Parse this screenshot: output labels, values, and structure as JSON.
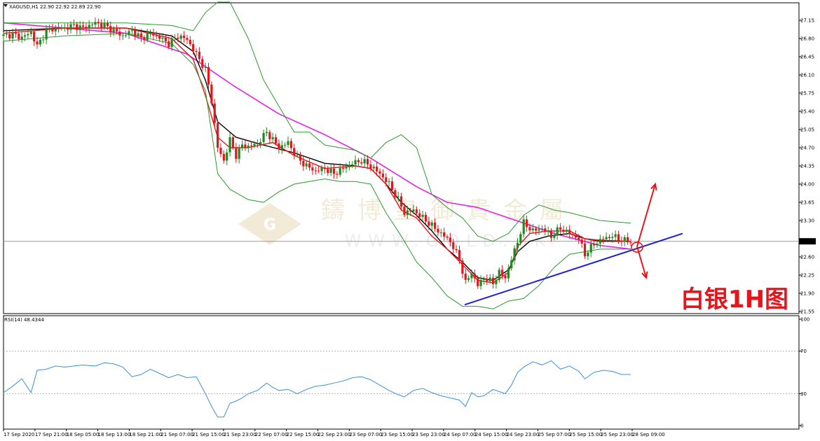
{
  "chart_data": [
    {
      "type": "candlestick",
      "symbol_header": "XAGUSD,H1",
      "ohlc_header": "22.90 22.92 22.89 22.90",
      "ylim": [
        21.55,
        27.35
      ],
      "y_ticks": [
        "27.15",
        "26.80",
        "26.45",
        "26.10",
        "25.75",
        "25.40",
        "25.05",
        "24.70",
        "24.35",
        "24.00",
        "23.65",
        "23.30",
        "22.60",
        "22.25",
        "21.90",
        "21.55"
      ],
      "current_price_label": "22.90",
      "current_price": 22.9,
      "x_labels": [
        "17 Sep 2020",
        "17 Sep 21:00",
        "18 Sep 05:00",
        "18 Sep 13:00",
        "18 Sep 21:00",
        "21 Sep 07:00",
        "21 Sep 15:00",
        "21 Sep 23:00",
        "22 Sep 07:00",
        "22 Sep 15:00",
        "22 Sep 23:00",
        "23 Sep 07:00",
        "23 Sep 15:00",
        "23 Sep 23:00",
        "24 Sep 07:00",
        "24 Sep 15:00",
        "24 Sep 23:00",
        "25 Sep 07:00",
        "25 Sep 15:00",
        "25 Sep 23:00",
        "28 Sep 09:00"
      ],
      "close_path": [
        [
          0,
          26.85
        ],
        [
          3,
          26.88
        ],
        [
          6,
          26.82
        ],
        [
          9,
          26.92
        ],
        [
          11,
          26.65
        ],
        [
          14,
          26.95
        ],
        [
          17,
          27.0
        ],
        [
          20,
          27.0
        ],
        [
          23,
          27.05
        ],
        [
          26,
          27.0
        ],
        [
          30,
          27.1
        ],
        [
          33,
          27.05
        ],
        [
          36,
          26.95
        ],
        [
          39,
          26.85
        ],
        [
          42,
          26.95
        ],
        [
          45,
          26.8
        ],
        [
          48,
          26.9
        ],
        [
          51,
          26.82
        ],
        [
          54,
          26.7
        ],
        [
          57,
          26.85
        ],
        [
          60,
          26.78
        ],
        [
          63,
          26.5
        ],
        [
          66,
          26.2
        ],
        [
          68,
          25.6
        ],
        [
          70,
          24.7
        ],
        [
          72,
          24.45
        ],
        [
          74,
          24.85
        ],
        [
          76,
          24.55
        ],
        [
          78,
          24.75
        ],
        [
          80,
          24.72
        ],
        [
          83,
          24.78
        ],
        [
          86,
          25.0
        ],
        [
          88,
          24.85
        ],
        [
          90,
          24.7
        ],
        [
          93,
          24.8
        ],
        [
          96,
          24.5
        ],
        [
          99,
          24.35
        ],
        [
          102,
          24.25
        ],
        [
          105,
          24.3
        ],
        [
          108,
          24.2
        ],
        [
          111,
          24.3
        ],
        [
          114,
          24.4
        ],
        [
          117,
          24.45
        ],
        [
          120,
          24.35
        ],
        [
          123,
          24.2
        ],
        [
          126,
          24.0
        ],
        [
          129,
          23.7
        ],
        [
          131,
          23.45
        ],
        [
          134,
          23.5
        ],
        [
          137,
          23.35
        ],
        [
          140,
          23.2
        ],
        [
          143,
          23.05
        ],
        [
          146,
          22.9
        ],
        [
          149,
          22.55
        ],
        [
          151,
          22.1
        ],
        [
          153,
          22.3
        ],
        [
          155,
          22.05
        ],
        [
          157,
          22.2
        ],
        [
          160,
          22.1
        ],
        [
          162,
          22.3
        ],
        [
          164,
          22.2
        ],
        [
          166,
          22.55
        ],
        [
          168,
          22.9
        ],
        [
          170,
          23.25
        ],
        [
          173,
          23.1
        ],
        [
          176,
          23.15
        ],
        [
          179,
          23.0
        ],
        [
          182,
          23.15
        ],
        [
          185,
          23.05
        ],
        [
          188,
          22.95
        ],
        [
          190,
          22.65
        ],
        [
          193,
          22.85
        ],
        [
          196,
          22.95
        ],
        [
          199,
          23.0
        ],
        [
          202,
          22.92
        ],
        [
          205,
          22.9
        ]
      ],
      "series": [
        {
          "name": "",
          "values": [
            [
              0,
              27.1
            ],
            [
              20,
              27.0
            ],
            [
              40,
              26.9
            ],
            [
              60,
              26.5
            ],
            [
              75,
              25.9
            ],
            [
              90,
              25.35
            ],
            [
              105,
              24.95
            ],
            [
              120,
              24.5
            ],
            [
              135,
              23.95
            ],
            [
              145,
              23.65
            ],
            [
              155,
              23.55
            ],
            [
              165,
              23.35
            ],
            [
              180,
              23.05
            ],
            [
              195,
              22.82
            ],
            [
              205,
              22.75
            ]
          ]
        },
        {
          "name": "",
          "values": [
            [
              0,
              26.95
            ],
            [
              20,
              27.0
            ],
            [
              40,
              27.0
            ],
            [
              55,
              26.85
            ],
            [
              62,
              26.55
            ],
            [
              66,
              26.0
            ],
            [
              70,
              25.2
            ],
            [
              76,
              24.9
            ],
            [
              85,
              24.75
            ],
            [
              95,
              24.6
            ],
            [
              105,
              24.4
            ],
            [
              115,
              24.35
            ],
            [
              120,
              24.3
            ],
            [
              125,
              24.0
            ],
            [
              130,
              23.65
            ],
            [
              135,
              23.4
            ],
            [
              140,
              23.1
            ],
            [
              145,
              22.75
            ],
            [
              150,
              22.5
            ],
            [
              155,
              22.2
            ],
            [
              160,
              22.15
            ],
            [
              165,
              22.35
            ],
            [
              168,
              22.7
            ],
            [
              172,
              22.9
            ],
            [
              178,
              23.0
            ],
            [
              185,
              23.05
            ],
            [
              190,
              22.95
            ],
            [
              195,
              22.9
            ],
            [
              205,
              22.9
            ]
          ]
        },
        {
          "name": "",
          "values": [
            [
              0,
              26.9
            ],
            [
              20,
              27.0
            ],
            [
              40,
              27.0
            ],
            [
              55,
              26.8
            ],
            [
              62,
              26.4
            ],
            [
              66,
              25.7
            ],
            [
              70,
              24.9
            ],
            [
              74,
              24.7
            ],
            [
              80,
              24.7
            ],
            [
              88,
              24.8
            ],
            [
              95,
              24.55
            ],
            [
              105,
              24.3
            ],
            [
              115,
              24.35
            ],
            [
              120,
              24.3
            ],
            [
              125,
              24.0
            ],
            [
              130,
              23.5
            ],
            [
              135,
              23.35
            ],
            [
              140,
              23.0
            ],
            [
              145,
              22.75
            ],
            [
              150,
              22.45
            ],
            [
              155,
              22.15
            ],
            [
              160,
              22.1
            ],
            [
              165,
              22.3
            ],
            [
              168,
              22.8
            ],
            [
              172,
              23.05
            ],
            [
              178,
              23.1
            ],
            [
              185,
              23.1
            ],
            [
              190,
              22.95
            ],
            [
              195,
              22.92
            ],
            [
              205,
              22.9
            ]
          ]
        },
        {
          "name": "",
          "values": [
            [
              0,
              27.1
            ],
            [
              20,
              27.1
            ],
            [
              40,
              27.1
            ],
            [
              55,
              27.05
            ],
            [
              62,
              26.95
            ],
            [
              66,
              27.3
            ],
            [
              70,
              27.5
            ],
            [
              74,
              27.5
            ],
            [
              80,
              26.8
            ],
            [
              85,
              26.0
            ],
            [
              90,
              25.5
            ],
            [
              95,
              25.0
            ],
            [
              100,
              25.0
            ],
            [
              105,
              24.75
            ],
            [
              115,
              24.65
            ],
            [
              120,
              24.5
            ],
            [
              125,
              24.8
            ],
            [
              130,
              24.95
            ],
            [
              135,
              24.7
            ],
            [
              140,
              23.8
            ],
            [
              145,
              23.55
            ],
            [
              150,
              23.35
            ],
            [
              155,
              23.0
            ],
            [
              160,
              22.9
            ],
            [
              165,
              23.05
            ],
            [
              170,
              23.4
            ],
            [
              175,
              23.6
            ],
            [
              180,
              23.5
            ],
            [
              185,
              23.45
            ],
            [
              195,
              23.3
            ],
            [
              205,
              23.25
            ]
          ]
        },
        {
          "name": "",
          "values": [
            [
              0,
              26.75
            ],
            [
              20,
              26.85
            ],
            [
              40,
              26.9
            ],
            [
              55,
              26.7
            ],
            [
              62,
              26.3
            ],
            [
              66,
              25.8
            ],
            [
              70,
              24.2
            ],
            [
              74,
              23.9
            ],
            [
              80,
              23.7
            ],
            [
              85,
              23.65
            ],
            [
              90,
              23.85
            ],
            [
              95,
              24.0
            ],
            [
              100,
              24.05
            ],
            [
              105,
              24.1
            ],
            [
              110,
              24.05
            ],
            [
              115,
              24.05
            ],
            [
              120,
              24.0
            ],
            [
              125,
              23.45
            ],
            [
              130,
              23.0
            ],
            [
              135,
              22.5
            ],
            [
              140,
              22.2
            ],
            [
              145,
              21.85
            ],
            [
              150,
              21.65
            ],
            [
              155,
              21.65
            ],
            [
              160,
              21.6
            ],
            [
              165,
              21.75
            ],
            [
              170,
              21.8
            ],
            [
              175,
              22.05
            ],
            [
              180,
              22.4
            ],
            [
              185,
              22.65
            ],
            [
              195,
              22.75
            ],
            [
              205,
              22.75
            ]
          ]
        }
      ],
      "trendline": [
        [
          0,
          21.68
        ],
        [
          230,
          23.05
        ]
      ],
      "arrows": [
        [
          0,
          22.8,
          22.25,
          24.0
        ],
        [
          0,
          22.8,
          8,
          22.2
        ]
      ],
      "annotation": "白银1H图",
      "watermark": {
        "cn": "鑄博皇御貴金屬",
        "en": "WWW.GOLD.HK",
        "logo": "G"
      }
    },
    {
      "type": "line",
      "header": "RSI(14) 48.4344",
      "ylim": [
        0,
        100
      ],
      "y_ticks": [
        "100",
        "70",
        "30",
        "0"
      ],
      "values": [
        [
          0,
          31
        ],
        [
          3,
          37
        ],
        [
          6,
          44
        ],
        [
          9,
          31
        ],
        [
          11,
          52
        ],
        [
          14,
          53
        ],
        [
          17,
          56
        ],
        [
          20,
          55
        ],
        [
          23,
          56
        ],
        [
          26,
          57
        ],
        [
          30,
          56
        ],
        [
          33,
          59
        ],
        [
          36,
          58
        ],
        [
          39,
          55
        ],
        [
          42,
          46
        ],
        [
          45,
          48
        ],
        [
          48,
          53
        ],
        [
          51,
          49
        ],
        [
          54,
          45
        ],
        [
          57,
          48
        ],
        [
          60,
          45
        ],
        [
          63,
          46
        ],
        [
          66,
          30
        ],
        [
          68,
          18
        ],
        [
          70,
          8
        ],
        [
          72,
          8
        ],
        [
          74,
          21
        ],
        [
          76,
          23
        ],
        [
          78,
          26
        ],
        [
          80,
          30
        ],
        [
          83,
          33
        ],
        [
          86,
          40
        ],
        [
          88,
          36
        ],
        [
          90,
          33
        ],
        [
          93,
          34
        ],
        [
          96,
          30
        ],
        [
          99,
          34
        ],
        [
          102,
          37
        ],
        [
          105,
          38
        ],
        [
          108,
          40
        ],
        [
          111,
          42
        ],
        [
          114,
          45
        ],
        [
          117,
          46
        ],
        [
          120,
          43
        ],
        [
          123,
          38
        ],
        [
          126,
          33
        ],
        [
          129,
          29
        ],
        [
          131,
          27
        ],
        [
          134,
          33
        ],
        [
          137,
          35
        ],
        [
          140,
          31
        ],
        [
          143,
          28
        ],
        [
          146,
          26
        ],
        [
          149,
          24
        ],
        [
          151,
          18
        ],
        [
          153,
          31
        ],
        [
          155,
          27
        ],
        [
          157,
          28
        ],
        [
          160,
          34
        ],
        [
          162,
          32
        ],
        [
          164,
          30
        ],
        [
          166,
          38
        ],
        [
          168,
          50
        ],
        [
          170,
          55
        ],
        [
          173,
          60
        ],
        [
          176,
          57
        ],
        [
          179,
          61
        ],
        [
          182,
          53
        ],
        [
          185,
          56
        ],
        [
          188,
          51
        ],
        [
          190,
          44
        ],
        [
          193,
          50
        ],
        [
          196,
          52
        ],
        [
          199,
          51
        ],
        [
          202,
          48
        ],
        [
          205,
          48
        ]
      ]
    }
  ]
}
